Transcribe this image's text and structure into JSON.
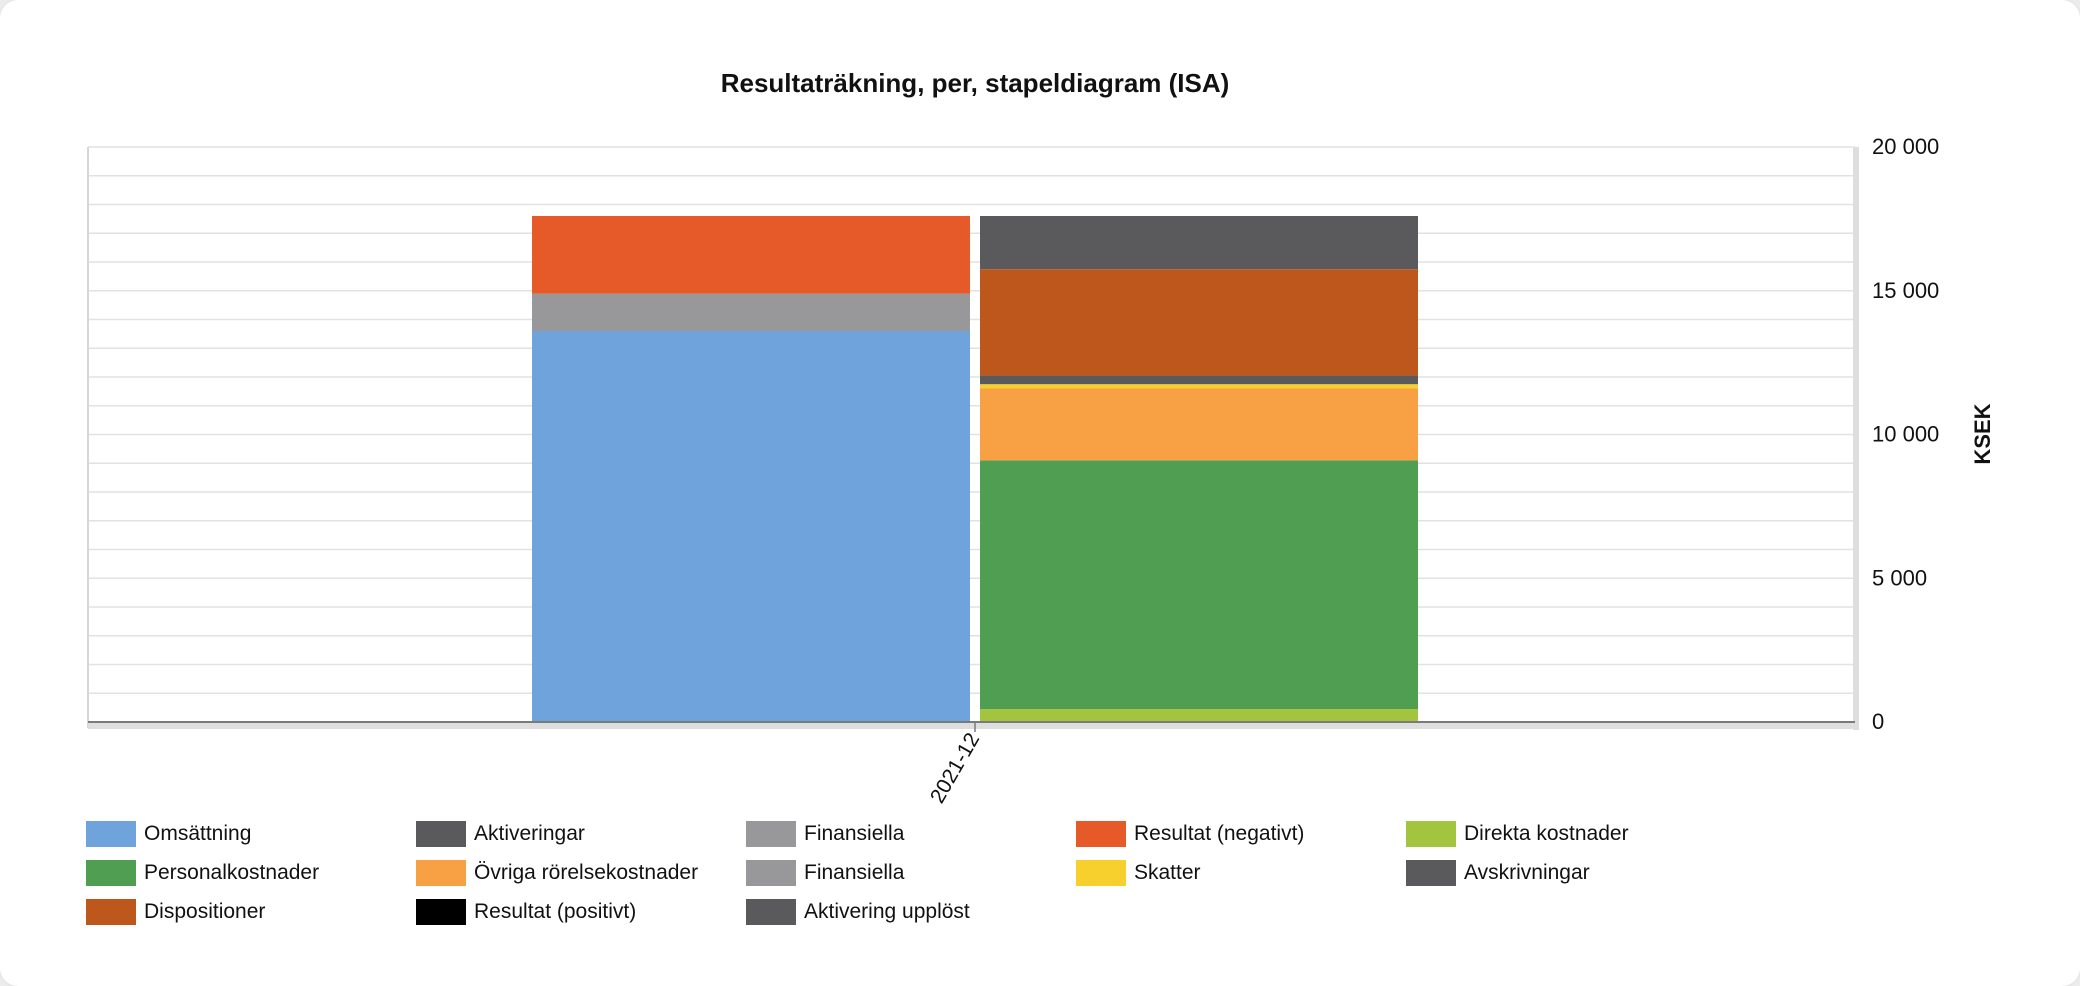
{
  "chart_data": {
    "type": "bar",
    "stacked": true,
    "title": "Resultaträkning, per, stapeldiagram (ISA)",
    "ylabel": "KSEK",
    "y_axis_side": "right",
    "ylim": [
      0,
      20000
    ],
    "yticks": [
      0,
      5000,
      10000,
      15000,
      20000
    ],
    "ytick_labels": [
      "0",
      "5 000",
      "10 000",
      "15 000",
      "20 000"
    ],
    "categories": [
      "2021-12"
    ],
    "grid": true,
    "legend_position": "bottom",
    "stacks": [
      {
        "name": "intakter",
        "segments": [
          {
            "series": "Omsättning",
            "value": 13600
          },
          {
            "series": "Finansiella",
            "value": 1300
          },
          {
            "series": "Resultat (negativt)",
            "value": 2700
          }
        ]
      },
      {
        "name": "kostnader",
        "segments": [
          {
            "series": "Direkta kostnader",
            "value": 450
          },
          {
            "series": "Personalkostnader",
            "value": 8650
          },
          {
            "series": "Övriga rörelsekostnader",
            "value": 2500
          },
          {
            "series": "Skatter",
            "value": 150
          },
          {
            "series": "Avskrivningar",
            "value": 300
          },
          {
            "series": "Dispositioner",
            "value": 3700
          },
          {
            "series": "Aktivering upplöst",
            "value": 1850
          }
        ]
      }
    ],
    "series": [
      {
        "name": "Omsättning",
        "color": "#6fa3dc"
      },
      {
        "name": "Aktiveringar",
        "color": "#5a5a5c"
      },
      {
        "name": "Finansiella",
        "color": "#98989b"
      },
      {
        "name": "Resultat (negativt)",
        "color": "#e55a28"
      },
      {
        "name": "Direkta kostnader",
        "color": "#a3c43e"
      },
      {
        "name": "Personalkostnader",
        "color": "#4f9e52"
      },
      {
        "name": "Övriga rörelsekostnader",
        "color": "#f8a044"
      },
      {
        "name": "Finansiella",
        "color": "#98989b"
      },
      {
        "name": "Skatter",
        "color": "#f8d02e"
      },
      {
        "name": "Avskrivningar",
        "color": "#5a5a5c"
      },
      {
        "name": "Dispositioner",
        "color": "#bd571c"
      },
      {
        "name": "Resultat (positivt)",
        "color": "#000000"
      },
      {
        "name": "Aktivering upplöst",
        "color": "#5a5a5c"
      }
    ]
  }
}
